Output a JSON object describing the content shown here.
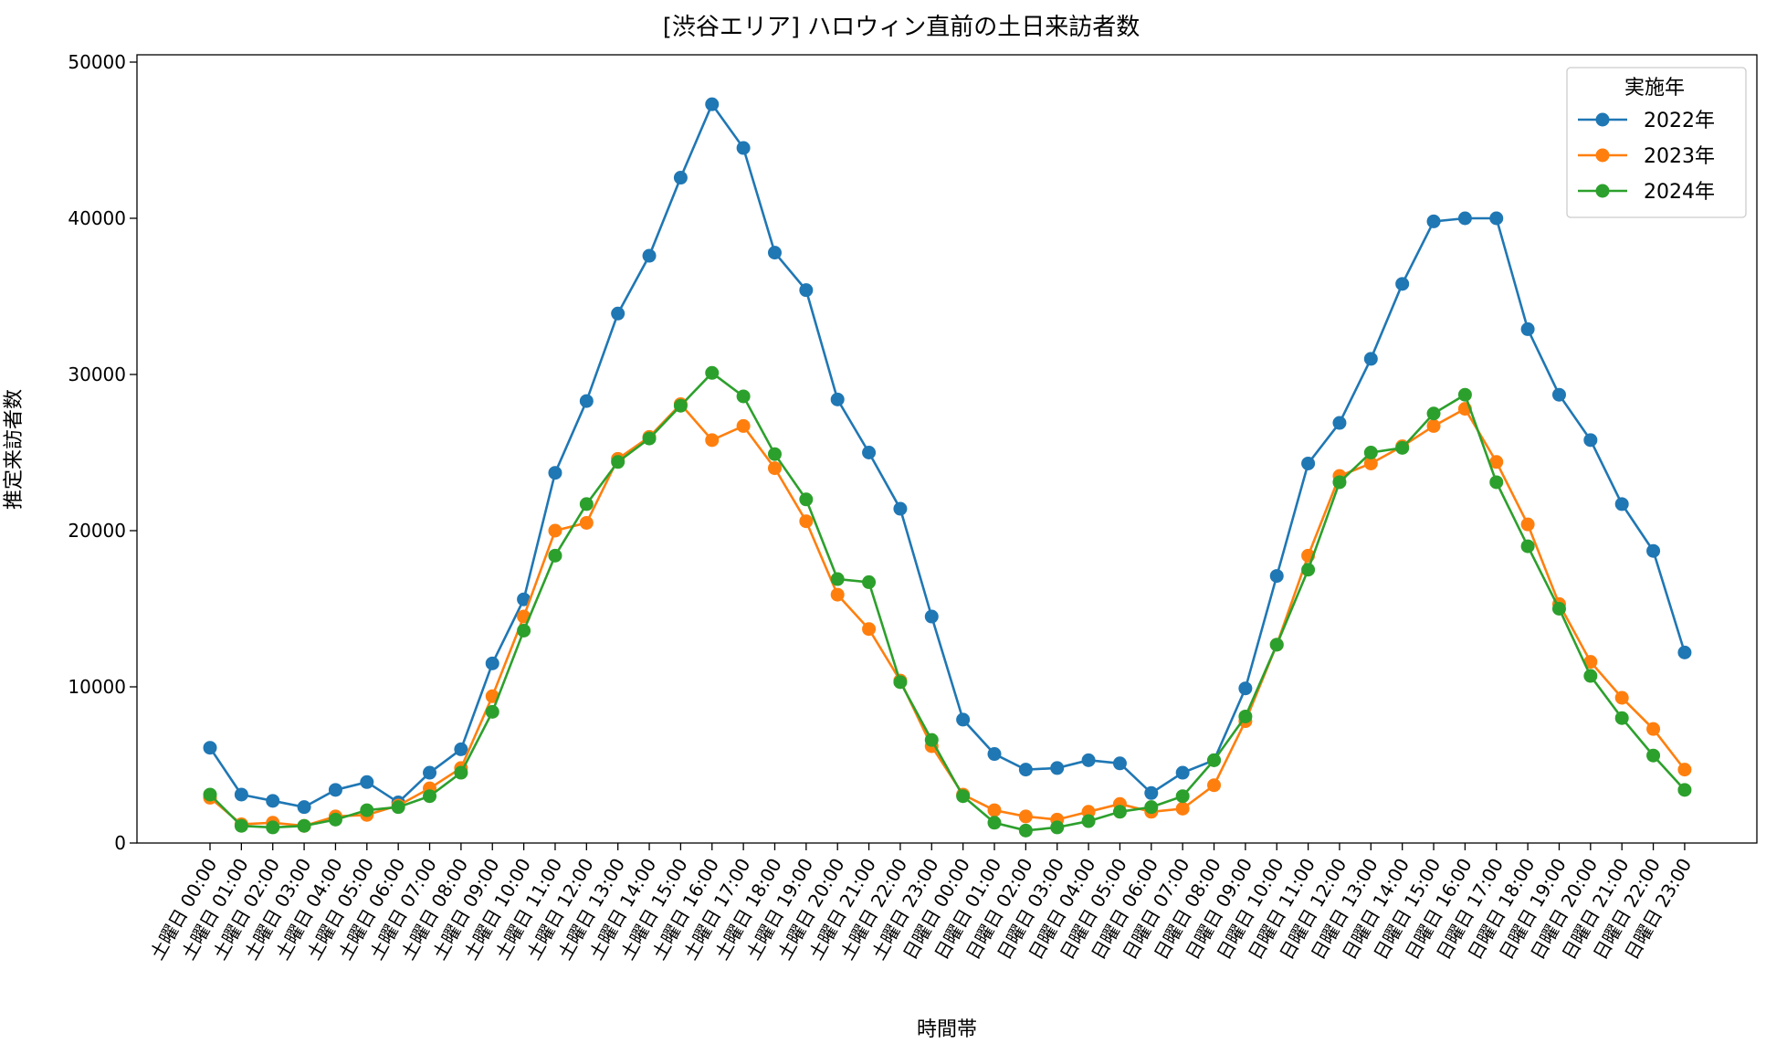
{
  "chart_data": {
    "type": "line",
    "title": "[渋谷エリア] ハロウィン直前の土日来訪者数",
    "xlabel": "時間帯",
    "ylabel": "推定来訪者数",
    "ylim": [
      0,
      50000
    ],
    "yticks": [
      0,
      10000,
      20000,
      30000,
      40000,
      50000
    ],
    "grid": false,
    "legend": {
      "title": "実施年",
      "position": "top-right"
    },
    "categories": [
      "土曜日 00:00",
      "土曜日 01:00",
      "土曜日 02:00",
      "土曜日 03:00",
      "土曜日 04:00",
      "土曜日 05:00",
      "土曜日 06:00",
      "土曜日 07:00",
      "土曜日 08:00",
      "土曜日 09:00",
      "土曜日 10:00",
      "土曜日 11:00",
      "土曜日 12:00",
      "土曜日 13:00",
      "土曜日 14:00",
      "土曜日 15:00",
      "土曜日 16:00",
      "土曜日 17:00",
      "土曜日 18:00",
      "土曜日 19:00",
      "土曜日 20:00",
      "土曜日 21:00",
      "土曜日 22:00",
      "土曜日 23:00",
      "日曜日 00:00",
      "日曜日 01:00",
      "日曜日 02:00",
      "日曜日 03:00",
      "日曜日 04:00",
      "日曜日 05:00",
      "日曜日 06:00",
      "日曜日 07:00",
      "日曜日 08:00",
      "日曜日 09:00",
      "日曜日 10:00",
      "日曜日 11:00",
      "日曜日 12:00",
      "日曜日 13:00",
      "日曜日 14:00",
      "日曜日 15:00",
      "日曜日 16:00",
      "日曜日 17:00",
      "日曜日 18:00",
      "日曜日 19:00",
      "日曜日 20:00",
      "日曜日 21:00",
      "日曜日 22:00",
      "日曜日 23:00"
    ],
    "series": [
      {
        "name": "2022年",
        "color": "#1f77b4",
        "values": [
          6100,
          3100,
          2700,
          2300,
          3400,
          3900,
          2600,
          4500,
          6000,
          11500,
          15600,
          23700,
          28300,
          33900,
          37600,
          42600,
          47300,
          44500,
          37800,
          35400,
          28400,
          25000,
          21400,
          14500,
          7900,
          5700,
          4700,
          4800,
          5300,
          5100,
          3200,
          4500,
          5300,
          9900,
          17100,
          24300,
          26900,
          31000,
          35800,
          39800,
          40000,
          40000,
          32900,
          28700,
          25800,
          21700,
          18700,
          12200
        ]
      },
      {
        "name": "2023年",
        "color": "#ff7f0e",
        "values": [
          2900,
          1200,
          1300,
          1100,
          1700,
          1800,
          2400,
          3500,
          4800,
          9400,
          14500,
          20000,
          20500,
          24600,
          26000,
          28100,
          25800,
          26700,
          24000,
          20600,
          15900,
          13700,
          10400,
          6200,
          3100,
          2100,
          1700,
          1500,
          2000,
          2500,
          2000,
          2200,
          3700,
          7800,
          12700,
          18400,
          23500,
          24300,
          25400,
          26700,
          27800,
          24400,
          20400,
          15300,
          11600,
          9300,
          7300,
          4700
        ]
      },
      {
        "name": "2024年",
        "color": "#2ca02c",
        "values": [
          3100,
          1100,
          1000,
          1100,
          1500,
          2100,
          2300,
          3000,
          4500,
          8400,
          13600,
          18400,
          21700,
          24400,
          25900,
          28000,
          30100,
          28600,
          24900,
          22000,
          16900,
          16700,
          10300,
          6600,
          3000,
          1300,
          800,
          1000,
          1400,
          2000,
          2300,
          3000,
          5300,
          8100,
          12700,
          17500,
          23100,
          25000,
          25300,
          27500,
          28700,
          23100,
          19000,
          15000,
          10700,
          8000,
          5600,
          3400
        ]
      }
    ]
  }
}
